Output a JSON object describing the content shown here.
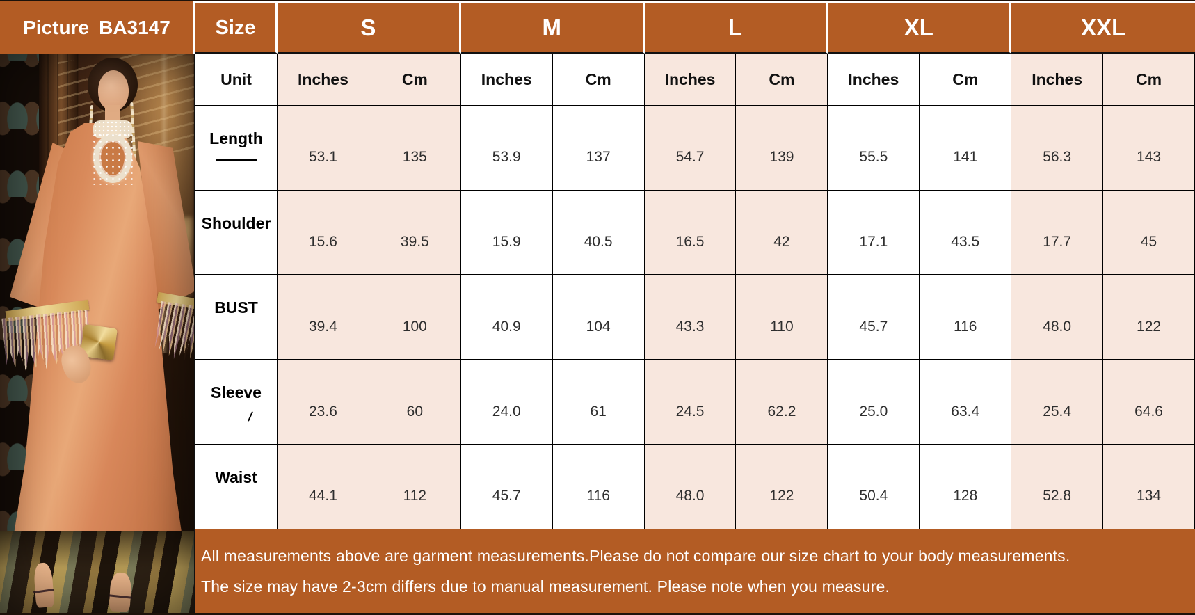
{
  "picture": {
    "label": "Picture",
    "code": "BA3147",
    "photo_description": "model in rust-orange satin kaftan dress with jeweled keyhole neckline, gold-trim tassel sleeves, holding a gold geometric clutch"
  },
  "table": {
    "size_label": "Size",
    "unit_label": "Unit",
    "sizes": [
      "S",
      "M",
      "L",
      "XL",
      "XXL"
    ],
    "unit_columns": [
      "Inches",
      "Cm"
    ],
    "rows": [
      {
        "label": "Length",
        "underline": true,
        "cursor_mark": false,
        "values": [
          "53.1",
          "135",
          "53.9",
          "137",
          "54.7",
          "139",
          "55.5",
          "141",
          "56.3",
          "143"
        ]
      },
      {
        "label": "Shoulder",
        "underline": false,
        "cursor_mark": false,
        "values": [
          "15.6",
          "39.5",
          "15.9",
          "40.5",
          "16.5",
          "42",
          "17.1",
          "43.5",
          "17.7",
          "45"
        ]
      },
      {
        "label": "BUST",
        "underline": false,
        "cursor_mark": false,
        "values": [
          "39.4",
          "100",
          "40.9",
          "104",
          "43.3",
          "110",
          "45.7",
          "116",
          "48.0",
          "122"
        ]
      },
      {
        "label": "Sleeve",
        "underline": false,
        "cursor_mark": true,
        "values": [
          "23.6",
          "60",
          "24.0",
          "61",
          "24.5",
          "62.2",
          "25.0",
          "63.4",
          "25.4",
          "64.6"
        ]
      },
      {
        "label": "Waist",
        "underline": false,
        "cursor_mark": false,
        "values": [
          "44.1",
          "112",
          "45.7",
          "116",
          "48.0",
          "122",
          "50.4",
          "128",
          "52.8",
          "134"
        ]
      }
    ]
  },
  "footer": {
    "line1": "All measurements above are garment measurements.Please do not compare our size chart to your body measurements.",
    "line2": "The size may have 2-3cm differs due to manual measurement. Please note when you measure."
  },
  "colors": {
    "header_bg": "#B35C24",
    "cell_pink": "#F8E7DE",
    "border": "#000000",
    "dress_orange": "#D8875A",
    "footer_text": "#FFFFFF"
  }
}
